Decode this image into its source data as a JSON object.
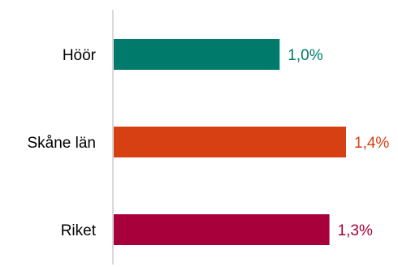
{
  "chart_data": {
    "type": "bar",
    "orientation": "horizontal",
    "categories": [
      "Höör",
      "Skåne län",
      "Riket"
    ],
    "values": [
      1.0,
      1.4,
      1.3
    ],
    "value_labels": [
      "1,0%",
      "1,4%",
      "1,3%"
    ],
    "colors": [
      "#007a6b",
      "#d64012",
      "#a8003a"
    ],
    "axis_color": "#d9d9d9",
    "xlim": [
      0,
      1.4
    ],
    "grid": false,
    "legend": "none"
  }
}
